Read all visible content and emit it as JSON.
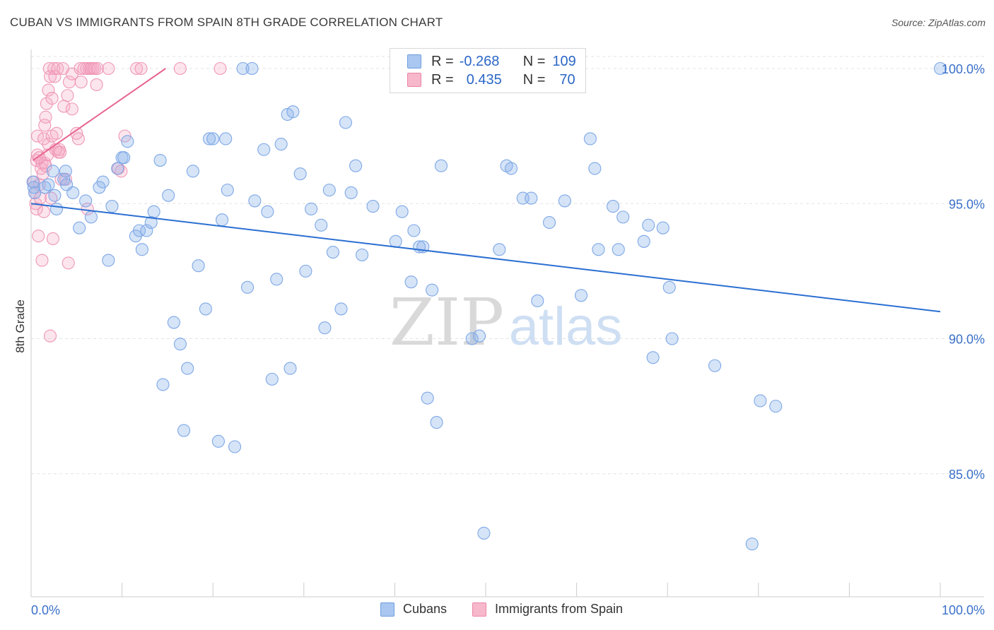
{
  "title": "CUBAN VS IMMIGRANTS FROM SPAIN 8TH GRADE CORRELATION CHART",
  "source": "Source: ZipAtlas.com",
  "watermark": {
    "zip": "ZIP",
    "atlas": "atlas"
  },
  "legend": {
    "rows": [
      {
        "r_label": "R =",
        "r_value": "-0.268",
        "n_label": "N =",
        "n_value": "109",
        "color": "#a9c7f0",
        "border": "#6f9ee0"
      },
      {
        "r_label": "R =",
        "r_value": "0.435",
        "n_label": "N =",
        "n_value": "70",
        "color": "#f7b8cb",
        "border": "#ec85a6"
      }
    ]
  },
  "bottom_legend": {
    "cubans": "Cubans",
    "spain": "Immigrants from Spain"
  },
  "colors": {
    "blue": "#2b6fd1",
    "blue_fill": "rgba(137,178,235,0.35)",
    "blue_stroke": "#7ea8e6",
    "pink": "#e8648f",
    "pink_fill": "rgba(245,170,195,0.30)",
    "pink_stroke": "#ef97b6",
    "grid": "#e3e3e3",
    "axis_text": "#3a70c9"
  },
  "chart_data": {
    "type": "scatter",
    "title": "CUBAN VS IMMIGRANTS FROM SPAIN 8TH GRADE CORRELATION CHART",
    "xlabel": "",
    "ylabel": "8th Grade",
    "xlim": [
      0,
      100
    ],
    "ylim": [
      80.5,
      100.5
    ],
    "x_tick_labels": [
      "0.0%",
      "100.0%"
    ],
    "y_ticks": [
      85.0,
      90.0,
      95.0,
      100.0
    ],
    "y_tick_labels": [
      "85.0%",
      "90.0%",
      "95.0%",
      "100.0%"
    ],
    "grid": "horizontal dashed",
    "legend_position": "top-center",
    "series": [
      {
        "name": "Cubans",
        "r": -0.268,
        "n": 109,
        "trend": {
          "x": [
            0,
            100
          ],
          "y": [
            95.0,
            91.0
          ]
        },
        "points": [
          [
            0.2,
            95.8
          ],
          [
            0.3,
            95.6
          ],
          [
            0.4,
            95.4
          ],
          [
            1.5,
            95.6
          ],
          [
            1.9,
            95.7
          ],
          [
            2.4,
            96.2
          ],
          [
            2.6,
            95.3
          ],
          [
            2.8,
            94.8
          ],
          [
            3.6,
            95.9
          ],
          [
            3.8,
            96.2
          ],
          [
            3.9,
            95.7
          ],
          [
            4.6,
            95.4
          ],
          [
            5.3,
            94.1
          ],
          [
            6.0,
            95.1
          ],
          [
            6.6,
            94.5
          ],
          [
            7.5,
            95.6
          ],
          [
            7.9,
            95.8
          ],
          [
            8.5,
            92.9
          ],
          [
            8.9,
            94.9
          ],
          [
            9.5,
            96.3
          ],
          [
            10.0,
            96.7
          ],
          [
            10.2,
            96.7
          ],
          [
            10.6,
            97.3
          ],
          [
            11.5,
            93.8
          ],
          [
            11.9,
            94.0
          ],
          [
            12.2,
            93.3
          ],
          [
            12.7,
            94.0
          ],
          [
            13.2,
            94.3
          ],
          [
            13.5,
            94.7
          ],
          [
            14.2,
            96.6
          ],
          [
            14.5,
            88.3
          ],
          [
            15.1,
            95.3
          ],
          [
            15.7,
            90.6
          ],
          [
            16.4,
            89.8
          ],
          [
            16.8,
            86.6
          ],
          [
            17.2,
            88.9
          ],
          [
            17.8,
            96.2
          ],
          [
            18.4,
            92.7
          ],
          [
            19.2,
            91.1
          ],
          [
            19.6,
            97.4
          ],
          [
            20.0,
            97.4
          ],
          [
            20.6,
            86.2
          ],
          [
            21.0,
            94.4
          ],
          [
            21.4,
            97.4
          ],
          [
            21.6,
            95.5
          ],
          [
            22.4,
            86.0
          ],
          [
            23.3,
            100.0
          ],
          [
            23.8,
            91.9
          ],
          [
            24.3,
            100.0
          ],
          [
            24.6,
            95.1
          ],
          [
            25.6,
            97.0
          ],
          [
            26.0,
            94.7
          ],
          [
            26.5,
            88.5
          ],
          [
            27.0,
            92.2
          ],
          [
            27.5,
            97.2
          ],
          [
            28.2,
            98.3
          ],
          [
            28.5,
            88.9
          ],
          [
            28.8,
            98.4
          ],
          [
            29.6,
            96.1
          ],
          [
            30.2,
            92.5
          ],
          [
            30.8,
            94.8
          ],
          [
            31.9,
            94.2
          ],
          [
            32.3,
            90.4
          ],
          [
            32.8,
            95.5
          ],
          [
            33.2,
            93.2
          ],
          [
            34.1,
            91.1
          ],
          [
            34.6,
            98.0
          ],
          [
            35.2,
            95.4
          ],
          [
            35.7,
            96.4
          ],
          [
            36.4,
            93.1
          ],
          [
            37.6,
            94.9
          ],
          [
            40.1,
            93.6
          ],
          [
            40.8,
            94.7
          ],
          [
            41.8,
            92.1
          ],
          [
            42.1,
            94.0
          ],
          [
            42.7,
            93.4
          ],
          [
            43.1,
            93.4
          ],
          [
            43.6,
            87.8
          ],
          [
            44.1,
            91.8
          ],
          [
            44.6,
            86.9
          ],
          [
            45.1,
            96.4
          ],
          [
            48.5,
            90.0
          ],
          [
            49.3,
            90.1
          ],
          [
            49.8,
            82.8
          ],
          [
            51.5,
            93.3
          ],
          [
            52.3,
            96.4
          ],
          [
            52.8,
            96.3
          ],
          [
            54.1,
            95.2
          ],
          [
            55.0,
            95.2
          ],
          [
            55.7,
            91.4
          ],
          [
            57.0,
            94.3
          ],
          [
            58.7,
            95.1
          ],
          [
            60.5,
            91.6
          ],
          [
            61.5,
            97.4
          ],
          [
            62.0,
            96.3
          ],
          [
            62.4,
            93.3
          ],
          [
            64.0,
            94.9
          ],
          [
            64.6,
            93.3
          ],
          [
            65.1,
            94.5
          ],
          [
            67.4,
            93.6
          ],
          [
            67.9,
            94.2
          ],
          [
            68.4,
            89.3
          ],
          [
            69.5,
            94.1
          ],
          [
            70.2,
            91.9
          ],
          [
            70.5,
            90.0
          ],
          [
            75.2,
            89.0
          ],
          [
            79.3,
            82.4
          ],
          [
            80.2,
            87.7
          ],
          [
            81.9,
            87.5
          ],
          [
            100.0,
            100.0
          ]
        ]
      },
      {
        "name": "Immigrants from Spain",
        "r": 0.435,
        "n": 70,
        "trend": {
          "x": [
            0.2,
            14.8
          ],
          "y": [
            96.6,
            100.0
          ]
        },
        "points": [
          [
            0.3,
            95.8
          ],
          [
            0.4,
            95.4
          ],
          [
            0.5,
            95.0
          ],
          [
            0.6,
            94.8
          ],
          [
            0.6,
            96.6
          ],
          [
            0.7,
            96.8
          ],
          [
            0.7,
            97.5
          ],
          [
            0.8,
            93.8
          ],
          [
            0.9,
            95.7
          ],
          [
            1.0,
            95.2
          ],
          [
            1.2,
            92.9
          ],
          [
            1.2,
            96.5
          ],
          [
            1.3,
            96.1
          ],
          [
            1.4,
            94.7
          ],
          [
            1.4,
            97.4
          ],
          [
            1.5,
            96.5
          ],
          [
            1.5,
            97.9
          ],
          [
            1.6,
            98.2
          ],
          [
            1.7,
            98.7
          ],
          [
            1.8,
            96.8
          ],
          [
            1.9,
            97.2
          ],
          [
            1.9,
            99.2
          ],
          [
            2.0,
            100.0
          ],
          [
            2.1,
            90.1
          ],
          [
            2.1,
            99.7
          ],
          [
            2.2,
            95.2
          ],
          [
            2.3,
            97.5
          ],
          [
            2.3,
            98.9
          ],
          [
            2.4,
            93.7
          ],
          [
            2.5,
            100.0
          ],
          [
            2.6,
            99.7
          ],
          [
            2.8,
            97.6
          ],
          [
            2.9,
            100.0
          ],
          [
            3.0,
            96.9
          ],
          [
            3.1,
            97.0
          ],
          [
            3.3,
            95.9
          ],
          [
            3.5,
            100.0
          ],
          [
            3.6,
            98.6
          ],
          [
            3.8,
            95.9
          ],
          [
            4.0,
            99.0
          ],
          [
            4.1,
            92.8
          ],
          [
            4.2,
            99.5
          ],
          [
            4.5,
            98.5
          ],
          [
            4.5,
            99.8
          ],
          [
            5.0,
            97.6
          ],
          [
            5.2,
            97.4
          ],
          [
            5.4,
            100.0
          ],
          [
            5.5,
            99.5
          ],
          [
            5.8,
            100.0
          ],
          [
            6.1,
            100.0
          ],
          [
            6.2,
            94.8
          ],
          [
            6.4,
            100.0
          ],
          [
            6.6,
            100.0
          ],
          [
            6.8,
            100.0
          ],
          [
            7.0,
            100.0
          ],
          [
            7.2,
            99.4
          ],
          [
            7.3,
            100.0
          ],
          [
            8.5,
            100.0
          ],
          [
            9.6,
            96.3
          ],
          [
            9.9,
            96.2
          ],
          [
            10.3,
            97.5
          ],
          [
            11.6,
            100.0
          ],
          [
            12.1,
            100.0
          ],
          [
            16.4,
            100.0
          ],
          [
            20.8,
            100.0
          ],
          [
            1.1,
            96.3
          ],
          [
            2.7,
            97.0
          ],
          [
            3.2,
            96.9
          ],
          [
            0.9,
            96.7
          ],
          [
            1.6,
            96.4
          ]
        ]
      }
    ]
  }
}
